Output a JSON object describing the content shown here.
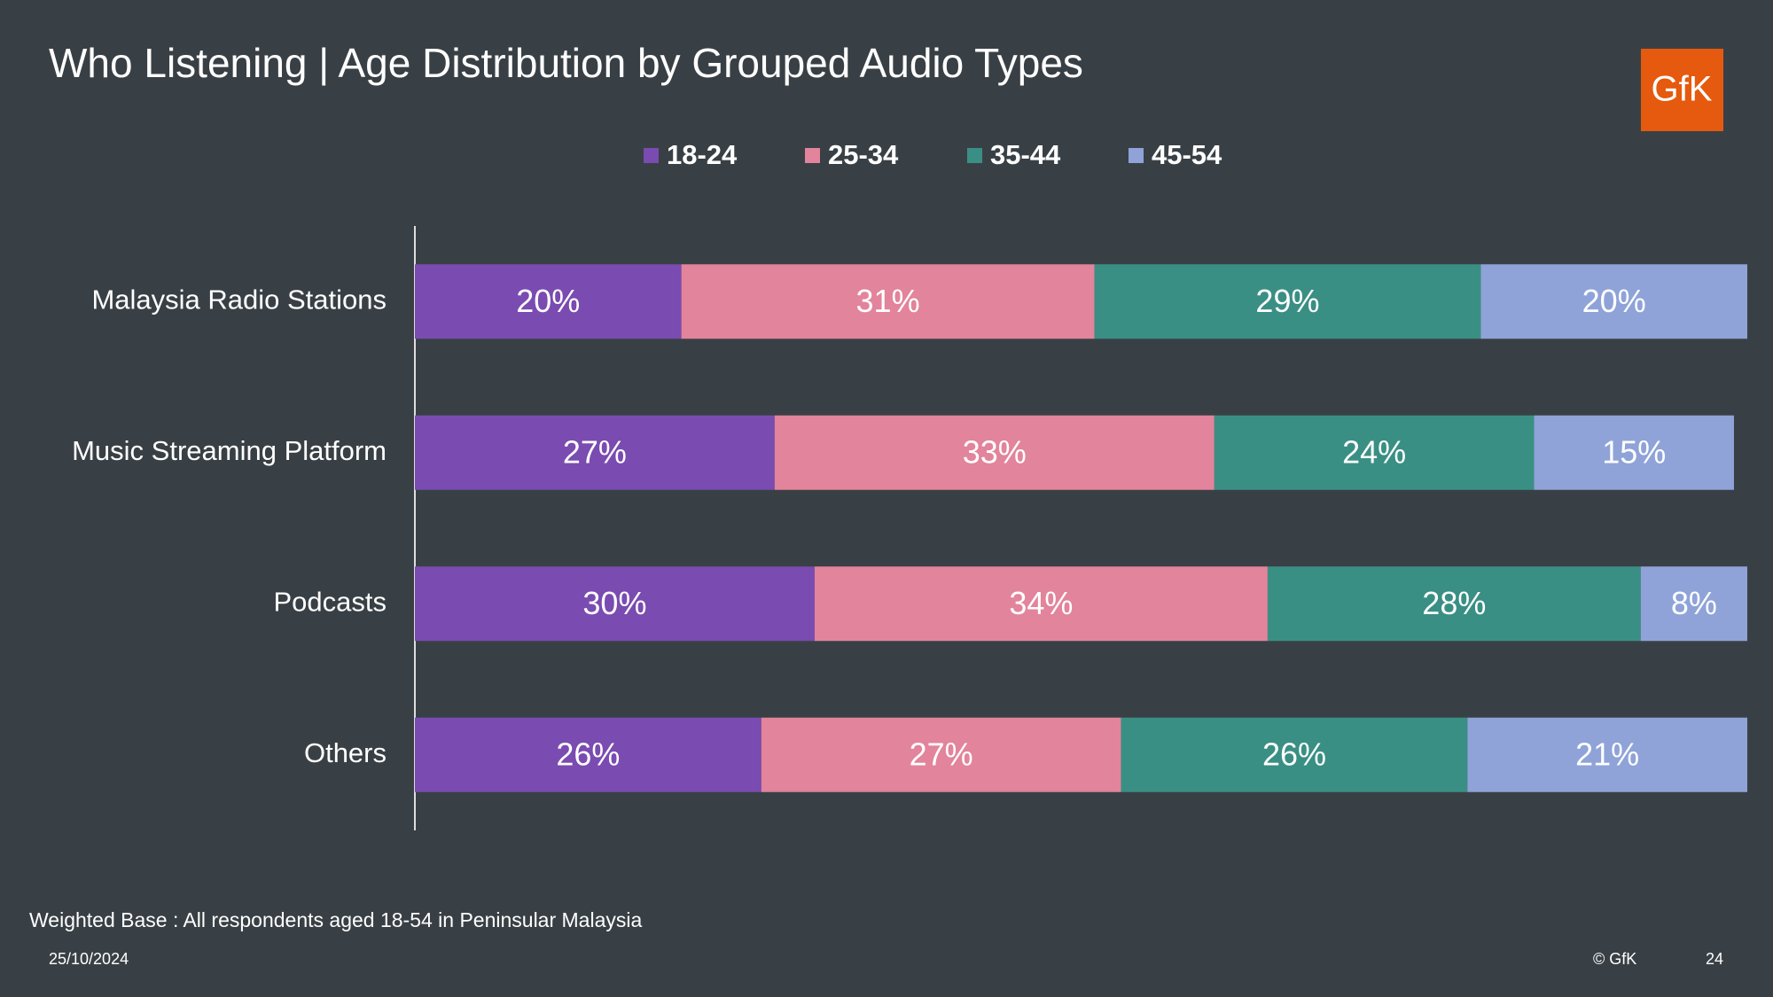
{
  "chart_data": {
    "type": "stacked-barh",
    "title": "Who Listening | Age Distribution by Grouped Audio Types",
    "categories": [
      "Malaysia Radio Stations",
      "Music Streaming Platform",
      "Podcasts",
      "Others"
    ],
    "series": [
      {
        "name": "18-24",
        "color": "#7a4bb0",
        "values": [
          20,
          27,
          30,
          26
        ],
        "value_labels": [
          "20%",
          "27%",
          "30%",
          "26%"
        ]
      },
      {
        "name": "25-34",
        "color": "#e2849b",
        "values": [
          31,
          33,
          34,
          27
        ],
        "value_labels": [
          "31%",
          "33%",
          "34%",
          "27%"
        ]
      },
      {
        "name": "35-44",
        "color": "#3a8f84",
        "values": [
          29,
          24,
          28,
          26
        ],
        "value_labels": [
          "29%",
          "24%",
          "28%",
          "26%"
        ]
      },
      {
        "name": "45-54",
        "color": "#8fa3d8",
        "values": [
          20,
          15,
          8,
          21
        ],
        "value_labels": [
          "20%",
          "15%",
          "8%",
          "21%"
        ]
      }
    ],
    "xlim": [
      0,
      100
    ],
    "legend": "top"
  },
  "footer": {
    "base_note": "Weighted Base : All respondents aged 18-54 in Peninsular Malaysia",
    "date": "25/10/2024",
    "copyright": "© GfK",
    "page": "24"
  },
  "logo": "GfK"
}
